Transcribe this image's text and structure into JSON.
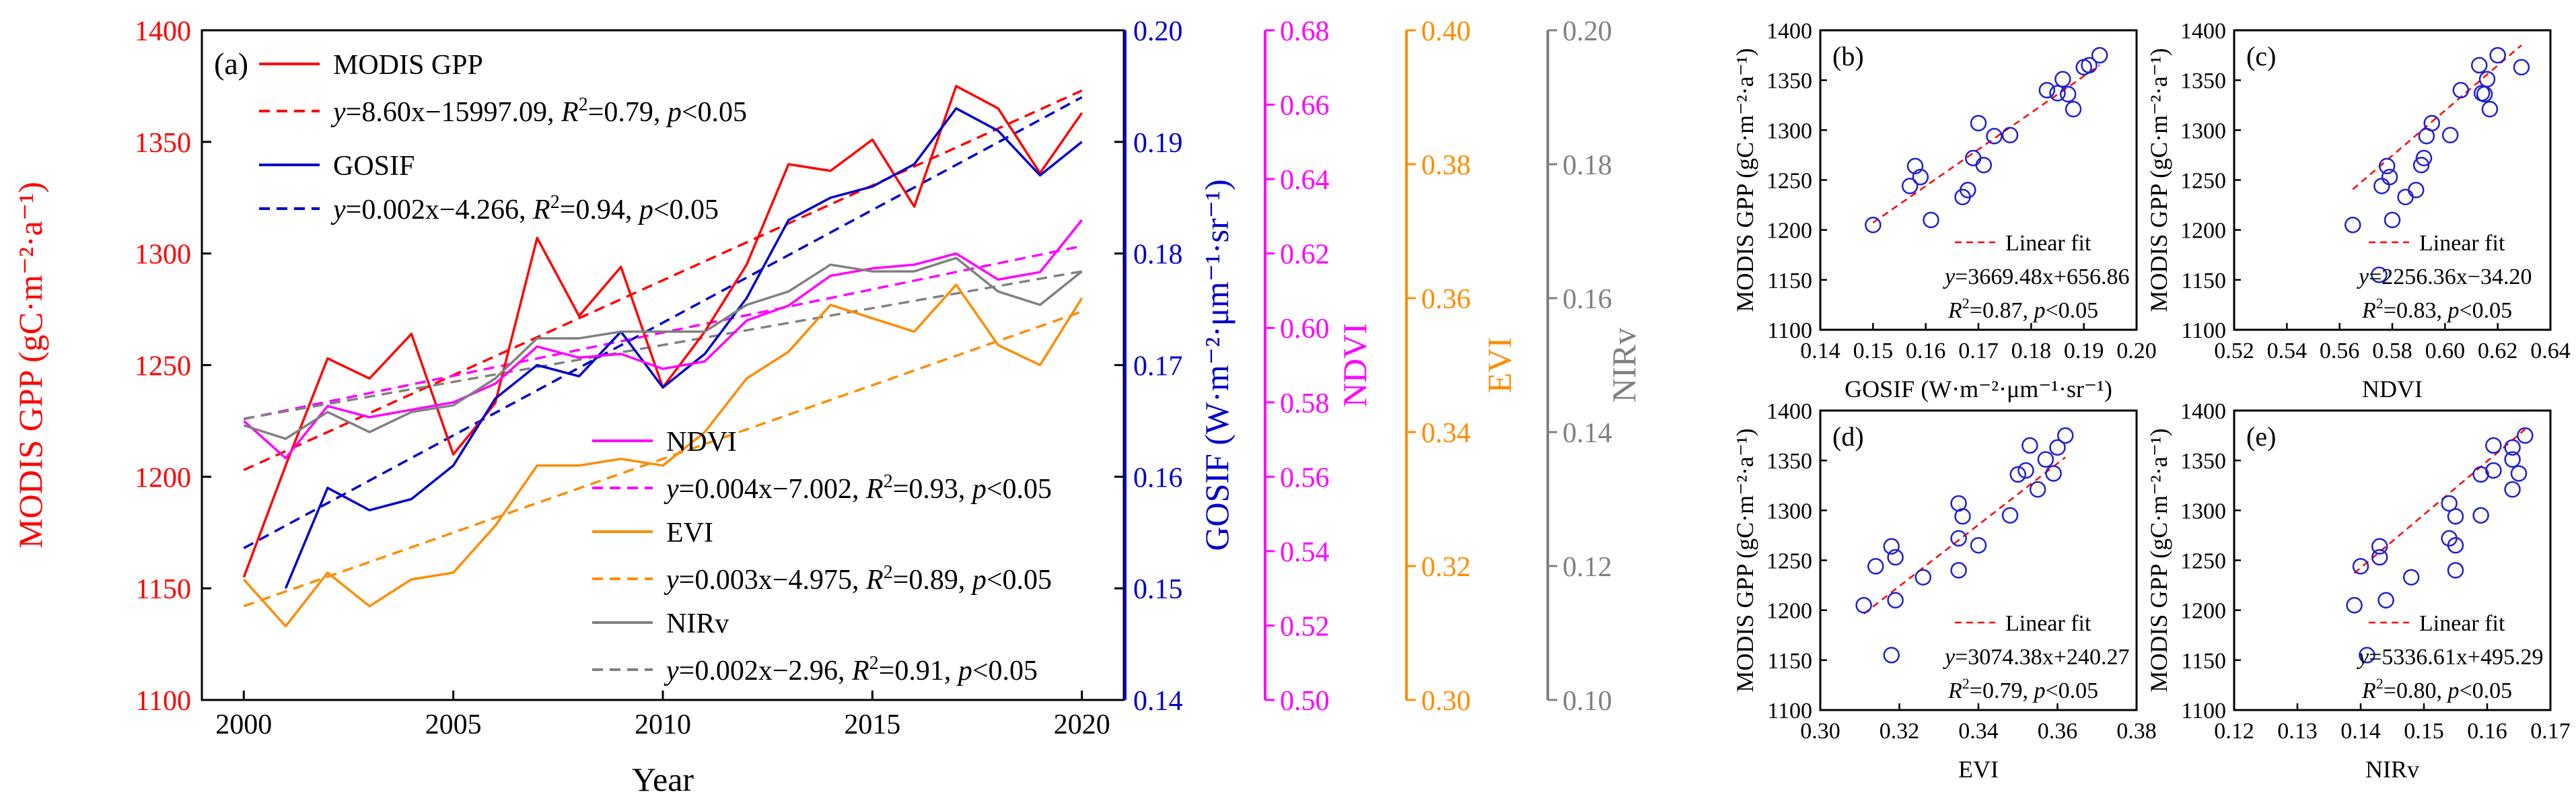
{
  "chart_data": [
    {
      "panel": "(a)",
      "type": "line",
      "xlabel": "Year",
      "x": [
        2000,
        2001,
        2002,
        2003,
        2004,
        2005,
        2006,
        2007,
        2008,
        2009,
        2010,
        2011,
        2012,
        2013,
        2014,
        2015,
        2016,
        2017,
        2018,
        2019,
        2020
      ],
      "xticks": [
        2000,
        2005,
        2010,
        2015,
        2020
      ],
      "xlim": [
        1999,
        2021
      ],
      "axes": [
        {
          "key": "gpp",
          "label": "MODIS GPP (gC·m⁻²·a⁻¹)",
          "color": "#ff0000",
          "range": [
            1100,
            1400
          ],
          "ticks": [
            "1100",
            "1150",
            "1200",
            "1250",
            "1300",
            "1350",
            "1400"
          ]
        },
        {
          "key": "gosif",
          "label": "GOSIF (W·m⁻²·μm⁻¹·sr⁻¹)",
          "color": "#0000cc",
          "range": [
            0.14,
            0.2
          ],
          "ticks": [
            "0.14",
            "0.15",
            "0.16",
            "0.17",
            "0.18",
            "0.19",
            "0.20"
          ]
        },
        {
          "key": "ndvi",
          "label": "NDVI",
          "color": "#ff00ff",
          "range": [
            0.5,
            0.68
          ],
          "ticks": [
            "0.50",
            "0.52",
            "0.54",
            "0.56",
            "0.58",
            "0.60",
            "0.62",
            "0.64",
            "0.66",
            "0.68"
          ]
        },
        {
          "key": "evi",
          "label": "EVI",
          "color": "#ff8c00",
          "range": [
            0.3,
            0.4
          ],
          "ticks": [
            "0.30",
            "0.32",
            "0.34",
            "0.36",
            "0.38",
            "0.40"
          ]
        },
        {
          "key": "nirv",
          "label": "NIRv",
          "color": "#808080",
          "range": [
            0.1,
            0.2
          ],
          "ticks": [
            "0.10",
            "0.12",
            "0.14",
            "0.16",
            "0.18",
            "0.20"
          ]
        }
      ],
      "series": [
        {
          "name": "MODIS GPP",
          "axis": "gpp",
          "values": [
            1155,
            1205,
            1253,
            1244,
            1264,
            1210,
            1233,
            1307,
            1272,
            1294,
            1240,
            1265,
            1295,
            1340,
            1337,
            1351,
            1321,
            1375,
            1365,
            1336,
            1363
          ]
        },
        {
          "name": "GOSIF",
          "axis": "gosif",
          "values": [
            null,
            0.15,
            0.159,
            0.157,
            0.158,
            0.161,
            0.167,
            0.17,
            0.169,
            0.173,
            0.168,
            0.171,
            0.176,
            0.183,
            0.185,
            0.186,
            0.188,
            0.193,
            0.191,
            0.187,
            0.19
          ]
        },
        {
          "name": "NDVI",
          "axis": "ndvi",
          "values": [
            0.575,
            0.565,
            0.579,
            0.576,
            0.578,
            0.58,
            0.585,
            0.595,
            0.592,
            0.593,
            0.589,
            0.591,
            0.602,
            0.606,
            0.614,
            0.616,
            0.617,
            0.62,
            0.613,
            0.615,
            0.629
          ]
        },
        {
          "name": "EVI",
          "axis": "evi",
          "values": [
            0.318,
            0.311,
            0.319,
            0.314,
            0.318,
            0.319,
            0.326,
            0.335,
            0.335,
            0.336,
            0.335,
            0.34,
            0.348,
            0.352,
            0.359,
            0.357,
            0.355,
            0.362,
            0.353,
            0.35,
            0.36
          ]
        },
        {
          "name": "NIRv",
          "axis": "nirv",
          "values": [
            0.141,
            0.139,
            0.143,
            0.14,
            0.143,
            0.144,
            0.148,
            0.154,
            0.154,
            0.155,
            0.155,
            0.155,
            0.159,
            0.161,
            0.165,
            0.164,
            0.164,
            0.166,
            0.161,
            0.159,
            0.164
          ]
        }
      ],
      "trends": [
        {
          "axis": "gpp",
          "start": 1203,
          "end": 1373,
          "label_y": "y",
          "label_eq": "=8.60x−15997.09, ",
          "label_r": "R",
          "label_sup": "2",
          "label_rv": "=0.79, ",
          "label_p": "p",
          "label_pv": "<0.05"
        },
        {
          "axis": "gosif",
          "start": 0.1536,
          "end": 0.194,
          "label_y": "y",
          "label_eq": "=0.002x−4.266, ",
          "label_r": "R",
          "label_sup": "2",
          "label_rv": "=0.94, ",
          "label_p": "p",
          "label_pv": "<0.05"
        },
        {
          "axis": "ndvi",
          "start": 0.5755,
          "end": 0.622,
          "label_y": "y",
          "label_eq": "=0.004x−7.002, ",
          "label_r": "R",
          "label_sup": "2",
          "label_rv": "=0.93, ",
          "label_p": "p",
          "label_pv": "<0.05"
        },
        {
          "axis": "evi",
          "start": 0.314,
          "end": 0.358,
          "label_y": "y",
          "label_eq": "=0.003x−4.975, ",
          "label_r": "R",
          "label_sup": "2",
          "label_rv": "=0.89, ",
          "label_p": "p",
          "label_pv": "<0.05"
        },
        {
          "axis": "nirv",
          "start": 0.142,
          "end": 0.164,
          "label_y": "y",
          "label_eq": "=0.002x−2.96, ",
          "label_r": "R",
          "label_sup": "2",
          "label_rv": "=0.91, ",
          "label_p": "p",
          "label_pv": "<0.05"
        }
      ],
      "legend_upper": [
        "MODIS GPP",
        "GOSIF"
      ],
      "legend_lower": [
        "NDVI",
        "EVI",
        "NIRv"
      ]
    },
    {
      "panel": "(b)",
      "type": "scatter",
      "xkey": "gosif",
      "xlabel": "GOSIF (W·m⁻²·μm⁻¹·sr⁻¹)",
      "ylabel": "MODIS GPP (gC·m⁻²·a⁻¹)",
      "xlim": [
        0.14,
        0.2
      ],
      "xticks": [
        "0.14",
        "0.15",
        "0.16",
        "0.17",
        "0.18",
        "0.19",
        "0.20"
      ],
      "ylim": [
        1100,
        1400
      ],
      "yticks": [
        "1100",
        "1150",
        "1200",
        "1250",
        "1300",
        "1350",
        "1400"
      ],
      "fit": [
        3669.48,
        656.86
      ],
      "fit_label": "Linear fit",
      "eq_y": "y",
      "eq_rest": "=3669.48x+656.86",
      "r": "R",
      "r_sup": "2",
      "r_val": "=0.87, ",
      "p": "p",
      "p_val": "<0.05"
    },
    {
      "panel": "(c)",
      "type": "scatter",
      "xkey": "ndvi",
      "xlabel": "NDVI",
      "ylabel": "MODIS GPP (gC·m⁻²·a⁻¹)",
      "xlim": [
        0.52,
        0.64
      ],
      "xticks": [
        "0.52",
        "0.54",
        "0.56",
        "0.58",
        "0.60",
        "0.62",
        "0.64"
      ],
      "ylim": [
        1100,
        1400
      ],
      "yticks": [
        "1100",
        "1150",
        "1200",
        "1250",
        "1300",
        "1350",
        "1400"
      ],
      "fit": [
        2256.36,
        -34.2
      ],
      "fit_label": "Linear fit",
      "eq_y": "y",
      "eq_rest": "=2256.36x−34.20",
      "r": "R",
      "r_sup": "2",
      "r_val": "=0.83, ",
      "p": "p",
      "p_val": "<0.05"
    },
    {
      "panel": "(d)",
      "type": "scatter",
      "xkey": "evi",
      "xlabel": "EVI",
      "ylabel": "MODIS GPP (gC·m⁻²·a⁻¹)",
      "xlim": [
        0.3,
        0.38
      ],
      "xticks": [
        "0.30",
        "0.32",
        "0.34",
        "0.36",
        "0.38"
      ],
      "ylim": [
        1100,
        1400
      ],
      "yticks": [
        "1100",
        "1150",
        "1200",
        "1250",
        "1300",
        "1350",
        "1400"
      ],
      "fit": [
        3074.38,
        240.27
      ],
      "fit_label": "Linear fit",
      "eq_y": "y",
      "eq_rest": "=3074.38x+240.27",
      "r": "R",
      "r_sup": "2",
      "r_val": "=0.79, ",
      "p": "p",
      "p_val": "<0.05"
    },
    {
      "panel": "(e)",
      "type": "scatter",
      "xkey": "nirv",
      "xlabel": "NIRv",
      "ylabel": "MODIS GPP (gC·m⁻²·a⁻¹)",
      "xlim": [
        0.12,
        0.17
      ],
      "xticks": [
        "0.12",
        "0.13",
        "0.14",
        "0.15",
        "0.16",
        "0.17"
      ],
      "ylim": [
        1100,
        1400
      ],
      "yticks": [
        "1100",
        "1150",
        "1200",
        "1250",
        "1300",
        "1350",
        "1400"
      ],
      "fit": [
        5336.61,
        495.29
      ],
      "fit_label": "Linear fit",
      "eq_y": "y",
      "eq_rest": "=5336.61x+495.29",
      "r": "R",
      "r_sup": "2",
      "r_val": "=0.80, ",
      "p": "p",
      "p_val": "<0.05"
    }
  ]
}
